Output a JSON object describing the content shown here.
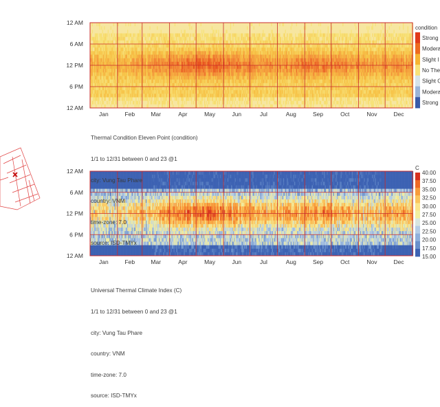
{
  "chart_data": [
    {
      "type": "heatmap",
      "title": "Thermal Condition Eleven Point (condition)",
      "meta_lines": [
        "1/1 to 12/31 between 0 and 23 @1",
        "city: Vung Tau Phare",
        "country: VNM",
        "time-zone: 7.0",
        "source: ISD-TMYx"
      ],
      "x_tick_labels": [
        "Jan",
        "Feb",
        "Mar",
        "Apr",
        "May",
        "Jun",
        "Jul",
        "Aug",
        "Sep",
        "Oct",
        "Nov",
        "Dec"
      ],
      "y_tick_labels": [
        "12 AM",
        "6 AM",
        "12 PM",
        "6 PM",
        "12 AM"
      ],
      "legend_title": "condition",
      "legend_labels": [
        "Strong",
        "Moderat",
        "Slight I",
        "No The",
        "Slight C",
        "Moderat",
        "Strong"
      ],
      "legend_colors": [
        "#e13a1a",
        "#ee6a1f",
        "#f7b433",
        "#f7e27a",
        "#d5e3ea",
        "#9ab4d8",
        "#3a5aa8"
      ]
    },
    {
      "type": "heatmap",
      "title": "Universal Thermal Climate Index (C)",
      "meta_lines": [
        "1/1 to 12/31 between 0 and 23 @1",
        "city: Vung Tau Phare",
        "country: VNM",
        "time-zone: 7.0",
        "source: ISD-TMYx"
      ],
      "x_tick_labels": [
        "Jan",
        "Feb",
        "Mar",
        "Apr",
        "May",
        "Jun",
        "Jul",
        "Aug",
        "Sep",
        "Oct",
        "Nov",
        "Dec"
      ],
      "y_tick_labels": [
        "12 AM",
        "6 AM",
        "12 PM",
        "6 PM",
        "12 AM"
      ],
      "legend_title": "C",
      "legend_labels": [
        "40.00",
        "37.50",
        "35.00",
        "32.50",
        "30.00",
        "27.50",
        "25.00",
        "22.50",
        "20.00",
        "17.50",
        "15.00"
      ],
      "legend_colors": [
        "#d7301f",
        "#ef6a24",
        "#f89c3b",
        "#fbc55c",
        "#fbe58a",
        "#f2eea0",
        "#d8e6e0",
        "#b5cde6",
        "#8fb0dc",
        "#6990cc",
        "#3d62b3"
      ]
    }
  ]
}
